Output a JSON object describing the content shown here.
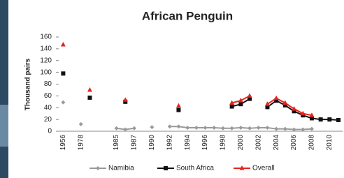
{
  "chart_data": {
    "type": "line",
    "title": "African Penguin",
    "y_label": "Thousand pairs",
    "categories": [
      "1956",
      null,
      "1978",
      null,
      null,
      null,
      "1985",
      null,
      "1987",
      null,
      "1990",
      null,
      "1992",
      null,
      "1994",
      null,
      "1996",
      null,
      "1998",
      null,
      "2000",
      null,
      "2002",
      null,
      "2004",
      null,
      "2006",
      null,
      "2008",
      null,
      "2010",
      null
    ],
    "series": [
      {
        "name": "Namibia",
        "color": "#9a9a9a",
        "values": [
          49,
          null,
          12,
          null,
          null,
          null,
          5,
          3,
          5,
          null,
          7,
          null,
          8,
          8,
          6,
          6,
          6,
          6,
          5,
          5,
          6,
          5,
          6,
          6,
          4,
          4,
          3,
          3,
          4,
          null,
          null,
          null
        ]
      },
      {
        "name": "South Africa",
        "color": "#111111",
        "values": [
          98,
          null,
          null,
          57,
          null,
          null,
          null,
          50,
          null,
          null,
          null,
          null,
          null,
          36,
          null,
          null,
          null,
          null,
          null,
          42,
          46,
          55,
          null,
          41,
          52,
          44,
          34,
          27,
          22,
          20,
          20,
          19
        ]
      },
      {
        "name": "Overall",
        "color": "#e8221c",
        "values": [
          147,
          null,
          null,
          70,
          null,
          null,
          null,
          53,
          null,
          null,
          null,
          null,
          null,
          43,
          null,
          null,
          null,
          null,
          null,
          48,
          52,
          60,
          null,
          46,
          56,
          48,
          38,
          30,
          27,
          null,
          null,
          null
        ]
      }
    ],
    "ylim": [
      0,
      160
    ],
    "yticks": [
      0,
      20,
      40,
      60,
      80,
      100,
      120,
      140,
      160
    ],
    "grid": false,
    "legend": "bottom"
  }
}
